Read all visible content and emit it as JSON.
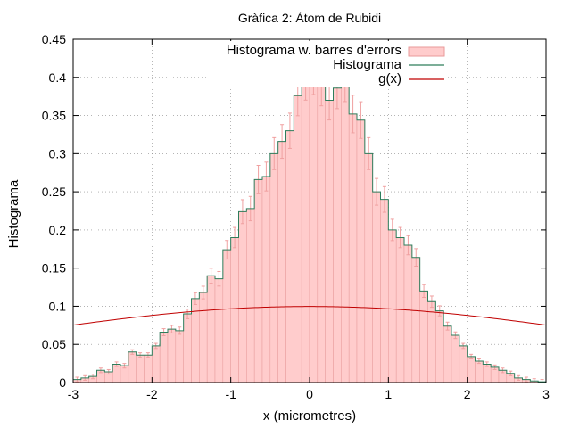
{
  "chart_data": {
    "type": "bar",
    "title": "Gràfica 2: Àtom de Rubidi",
    "xlabel": "x (micrometres)",
    "ylabel": "Histograma",
    "xlim": [
      -3,
      3
    ],
    "ylim": [
      0,
      0.45
    ],
    "x_ticks": [
      "-3",
      "-2",
      "-1",
      "0",
      "1",
      "2",
      "3"
    ],
    "y_ticks": [
      "0",
      "0.05",
      "0.1",
      "0.15",
      "0.2",
      "0.25",
      "0.3",
      "0.35",
      "0.4",
      "0.45"
    ],
    "grid": true,
    "legend_position": "top-right",
    "bins": {
      "start": -3,
      "width": 0.1,
      "values": [
        0.004,
        0.006,
        0.008,
        0.016,
        0.014,
        0.024,
        0.022,
        0.04,
        0.036,
        0.036,
        0.048,
        0.066,
        0.07,
        0.068,
        0.09,
        0.11,
        0.118,
        0.14,
        0.136,
        0.174,
        0.19,
        0.224,
        0.228,
        0.266,
        0.27,
        0.3,
        0.316,
        0.33,
        0.376,
        0.398,
        0.406,
        0.39,
        0.37,
        0.386,
        0.396,
        0.352,
        0.344,
        0.3,
        0.25,
        0.24,
        0.2,
        0.19,
        0.18,
        0.164,
        0.12,
        0.106,
        0.094,
        0.074,
        0.062,
        0.048,
        0.034,
        0.028,
        0.024,
        0.02,
        0.016,
        0.012,
        0.006,
        0.004,
        0.002,
        0.001
      ],
      "error_fraction": 0.07
    },
    "series": [
      {
        "name": "Histograma w. barres d'errors",
        "kind": "bars-with-errors",
        "color": "#ffcccc",
        "edge": "#e89a9a",
        "error_color": "#f0a0a0"
      },
      {
        "name": "Histograma",
        "kind": "steps",
        "color": "#2e7d5b"
      },
      {
        "name": "g(x)",
        "kind": "line",
        "color": "#c00000",
        "function": "gaussian",
        "mean": 0,
        "sigma": 4
      }
    ]
  }
}
